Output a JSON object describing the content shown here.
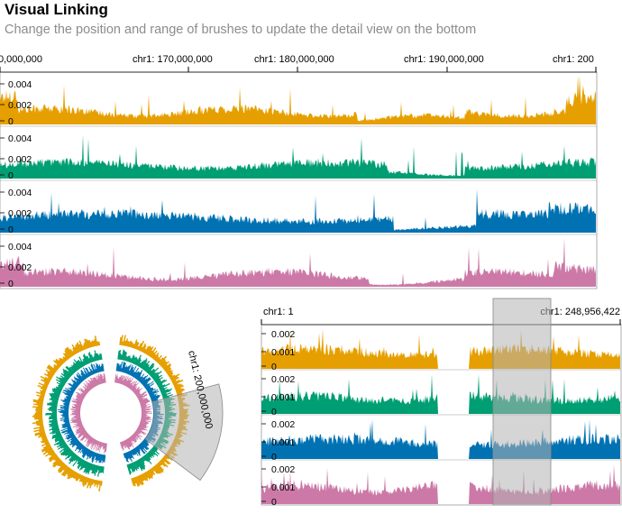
{
  "header": {
    "title": "Visual Linking",
    "subtitle": "Change the position and range of brushes to update the detail view on the bottom"
  },
  "top_view": {
    "axis_labels": [
      "0,000,000",
      "chr1: 170,000,000",
      "chr1: 180,000,000",
      "chr1: 190,000,000",
      "chr1: 200"
    ],
    "tracks": [
      {
        "color": "#E69F00",
        "ticks": [
          "0.004",
          "0.002",
          "0"
        ]
      },
      {
        "color": "#009E73",
        "ticks": [
          "0.004",
          "0.002",
          "0"
        ]
      },
      {
        "color": "#0072B2",
        "ticks": [
          "0.004",
          "0.002",
          "0"
        ]
      },
      {
        "color": "#CC79A7",
        "ticks": [
          "0.004",
          "0.002",
          "0"
        ]
      }
    ]
  },
  "circular_view": {
    "brush_label": "chr1: 200,000,000",
    "colors": [
      "#E69F00",
      "#009E73",
      "#0072B2",
      "#CC79A7"
    ]
  },
  "detail_view": {
    "axis_start": "chr1: 1",
    "axis_end": "chr1: 248,956,422",
    "tracks": [
      {
        "color": "#E69F00",
        "ticks": [
          "0.002",
          "0.001",
          "0"
        ]
      },
      {
        "color": "#009E73",
        "ticks": [
          "0.002",
          "0.001",
          "0"
        ]
      },
      {
        "color": "#0072B2",
        "ticks": [
          "0.002",
          "0.001",
          "0"
        ]
      },
      {
        "color": "#CC79A7",
        "ticks": [
          "0.002",
          "0.001",
          "0"
        ]
      }
    ]
  }
}
